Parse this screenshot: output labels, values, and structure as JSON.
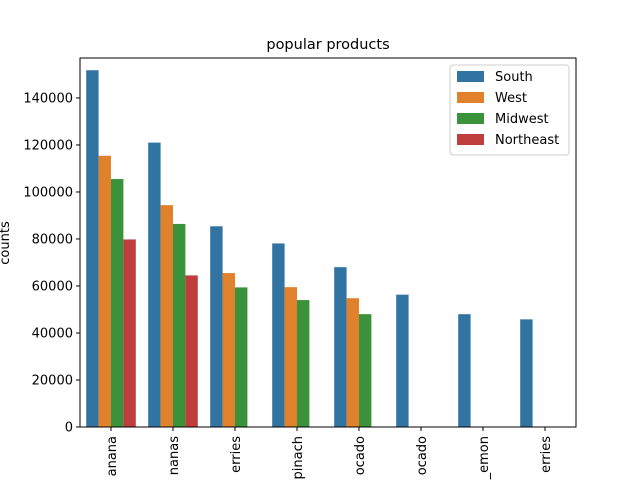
{
  "chart_data": {
    "type": "bar",
    "title": "popular products",
    "xlabel": "",
    "ylabel": "counts",
    "categories": [
      "anana",
      "nanas",
      "erries",
      "pinach",
      "ocado",
      "ocado",
      "_emon",
      "erries"
    ],
    "yticks": [
      0,
      20000,
      40000,
      60000,
      80000,
      100000,
      120000,
      140000
    ],
    "ylim": [
      0,
      157000
    ],
    "grid": false,
    "legend_position": "top-right",
    "series": [
      {
        "name": "South",
        "color": "#3274a1",
        "values": [
          151800,
          121000,
          85400,
          78100,
          68000,
          56300,
          48000,
          45800
        ]
      },
      {
        "name": "West",
        "color": "#e1812c",
        "values": [
          115400,
          94400,
          65500,
          59500,
          54800,
          null,
          null,
          null
        ]
      },
      {
        "name": "Midwest",
        "color": "#3a923a",
        "values": [
          105500,
          86400,
          59400,
          54000,
          48000,
          null,
          null,
          null
        ]
      },
      {
        "name": "Northeast",
        "color": "#c03d3e",
        "values": [
          79800,
          64500,
          null,
          null,
          null,
          null,
          null,
          null
        ]
      }
    ]
  }
}
